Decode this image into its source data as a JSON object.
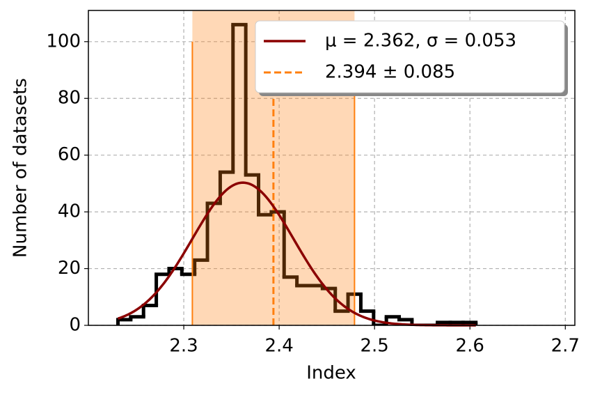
{
  "chart_data": {
    "type": "histogram",
    "xlabel": "Index",
    "ylabel": "Number of datasets",
    "bins": [
      2.231,
      2.2444,
      2.2578,
      2.2712,
      2.2846,
      2.298,
      2.3114,
      2.3248,
      2.3382,
      2.3516,
      2.365,
      2.3784,
      2.3918,
      2.4052,
      2.4186,
      2.432,
      2.4454,
      2.4588,
      2.4722,
      2.4856,
      2.499,
      2.5124,
      2.5258,
      2.5392,
      2.5526,
      2.566,
      2.5794,
      2.5928,
      2.6062
    ],
    "counts": [
      2,
      3,
      7,
      18,
      20,
      18,
      23,
      43,
      54,
      106,
      53,
      39,
      40,
      17,
      14,
      14,
      13,
      5,
      11,
      5,
      0,
      3,
      2,
      0,
      0,
      1,
      1,
      1
    ],
    "color": "#000000",
    "fit": {
      "name": "μ = 2.362, σ = 0.053",
      "mu": 2.362,
      "sigma": 0.053,
      "amplitude": 50.3,
      "color": "#8b0000"
    },
    "band": {
      "name": "2.394 ± 0.085",
      "center": 2.394,
      "error": 0.085,
      "color": "#ff7f0e"
    },
    "xlim": [
      2.2,
      2.71
    ],
    "xticks": [
      2.3,
      2.4,
      2.5,
      2.6,
      2.7
    ],
    "ylim": [
      0,
      111
    ],
    "yticks": [
      0,
      20,
      40,
      60,
      80,
      100
    ],
    "grid": true,
    "legend": "upper right"
  }
}
